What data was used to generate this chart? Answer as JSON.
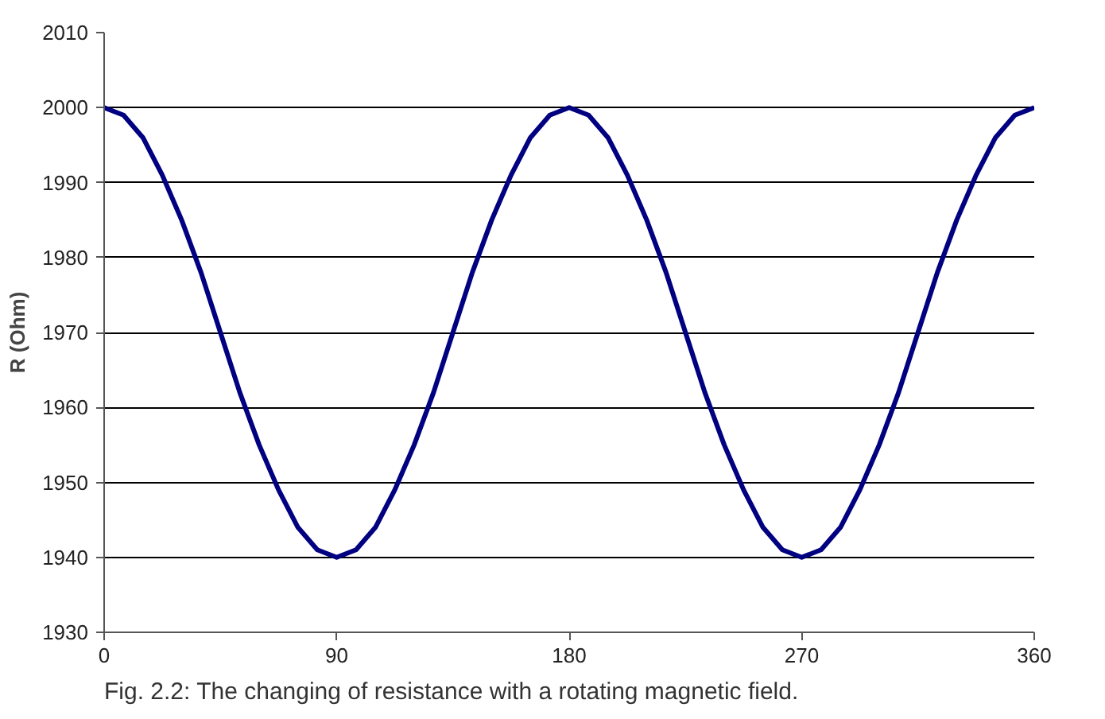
{
  "chart_data": {
    "type": "line",
    "ylabel": "R (Ohm)",
    "x": [
      0,
      7.5,
      15,
      22.5,
      30,
      37.5,
      45,
      52.5,
      60,
      67.5,
      75,
      82.5,
      90,
      97.5,
      105,
      112.5,
      120,
      127.5,
      135,
      142.5,
      150,
      157.5,
      165,
      172.5,
      180,
      187.5,
      195,
      202.5,
      210,
      217.5,
      225,
      232.5,
      240,
      247.5,
      255,
      262.5,
      270,
      277.5,
      285,
      292.5,
      300,
      307.5,
      315,
      322.5,
      330,
      337.5,
      345,
      352.5,
      360
    ],
    "series": [
      {
        "color": "#000080",
        "values": [
          2000,
          1999,
          1996,
          1991,
          1985,
          1978,
          1970,
          1962,
          1955,
          1949,
          1944,
          1941,
          1940,
          1941,
          1944,
          1949,
          1955,
          1962,
          1970,
          1978,
          1985,
          1991,
          1996,
          1999,
          2000,
          1999,
          1996,
          1991,
          1985,
          1978,
          1970,
          1962,
          1955,
          1949,
          1944,
          1941,
          1940,
          1941,
          1944,
          1949,
          1955,
          1962,
          1970,
          1978,
          1985,
          1991,
          1996,
          1999,
          2000
        ]
      }
    ],
    "xlim": [
      0,
      360
    ],
    "xticks": [
      0,
      90,
      180,
      270,
      360
    ],
    "ylim": [
      1930,
      2010
    ],
    "yticks": [
      1930,
      1940,
      1950,
      1960,
      1970,
      1980,
      1990,
      2000,
      2010
    ],
    "grid": "y",
    "marker": "none",
    "line_style": "solid",
    "annotations": [
      "Fig. 2.2: The changing of resistance with a rotating magnetic field."
    ]
  }
}
